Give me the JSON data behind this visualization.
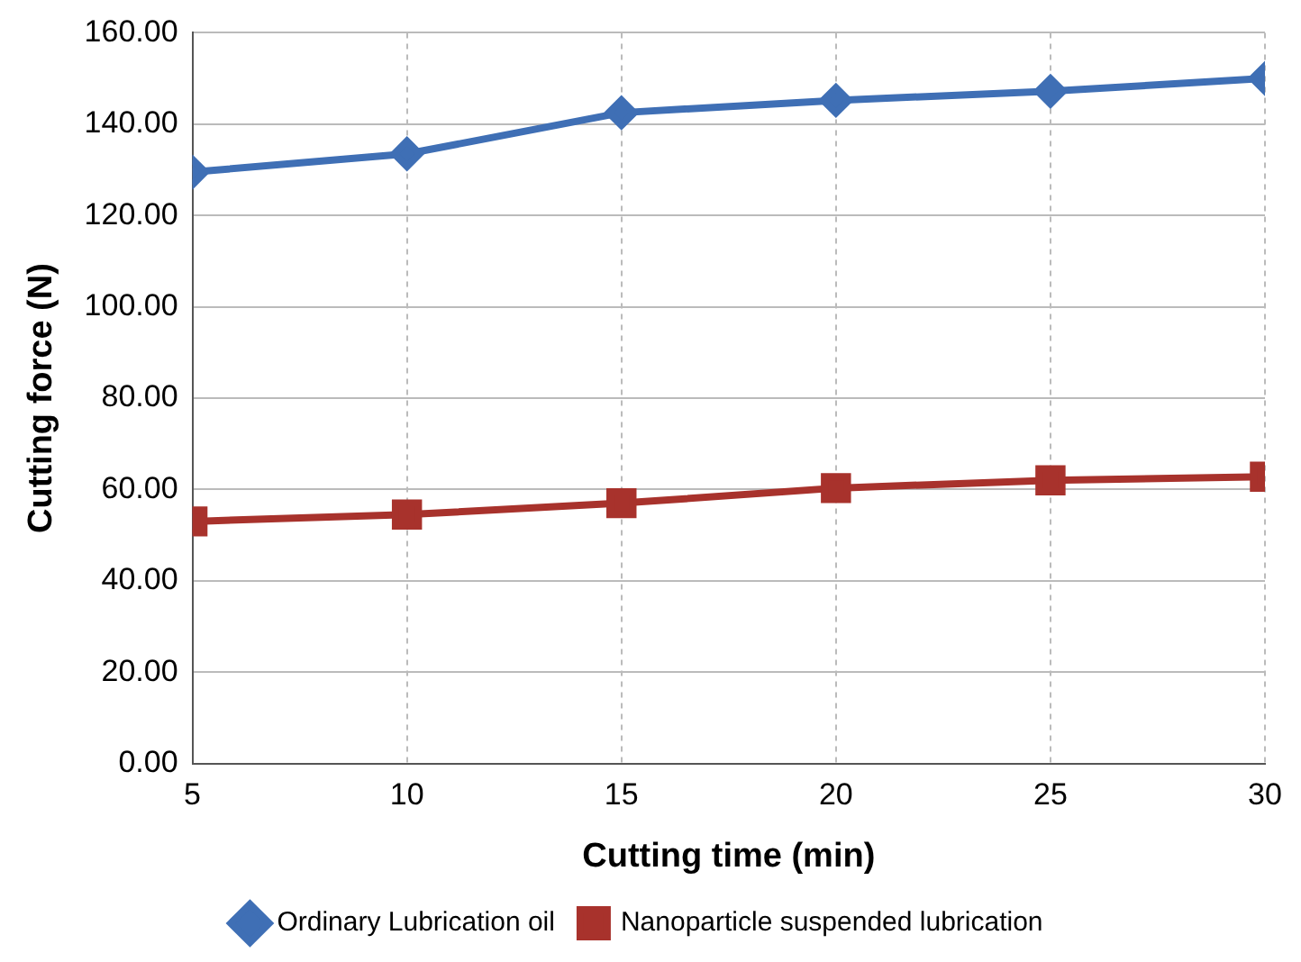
{
  "chart_data": {
    "type": "line",
    "xlabel": "Cutting time (min)",
    "ylabel": "Cutting force (N)",
    "x": [
      5,
      10,
      15,
      20,
      25,
      30
    ],
    "series": [
      {
        "name": "Ordinary Lubrication oil",
        "color": "#3f6fb5",
        "marker": "diamond",
        "values": [
          129.5,
          133.5,
          142.5,
          145.2,
          147.2,
          150
        ]
      },
      {
        "name": "Nanoparticle suspended lubrication",
        "color": "#a8322c",
        "marker": "square",
        "values": [
          53,
          54.5,
          57,
          60.3,
          62,
          62.8
        ]
      }
    ],
    "xlim": [
      5,
      30
    ],
    "xticks": [
      5,
      10,
      15,
      20,
      25,
      30
    ],
    "ylim": [
      0,
      160
    ],
    "yticks": [
      {
        "value": 0,
        "label": "0.00"
      },
      {
        "value": 20,
        "label": "20.00"
      },
      {
        "value": 40,
        "label": "40.00"
      },
      {
        "value": 60,
        "label": "60.00"
      },
      {
        "value": 80,
        "label": "80.00"
      },
      {
        "value": 100,
        "label": "100.00"
      },
      {
        "value": 120,
        "label": "120.00"
      },
      {
        "value": 140,
        "label": "140.00"
      },
      {
        "value": 160,
        "label": "160.00"
      }
    ],
    "grid": true,
    "legend": "bottom",
    "line_style": "solid"
  }
}
